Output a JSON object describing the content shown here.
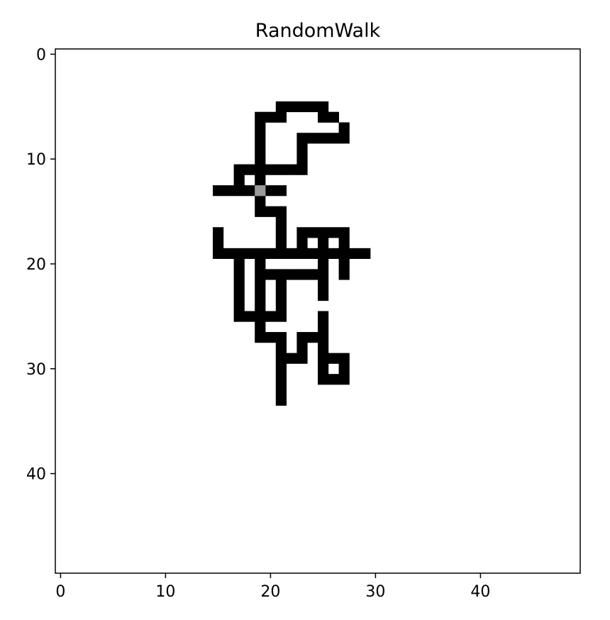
{
  "chart_data": {
    "type": "heatmap",
    "title": "RandomWalk",
    "grid_size": [
      50,
      50
    ],
    "xlim": [
      -0.5,
      49.5
    ],
    "ylim": [
      49.5,
      -0.5
    ],
    "xticks": [
      0,
      10,
      20,
      30,
      40
    ],
    "yticks": [
      0,
      10,
      20,
      30,
      40
    ],
    "xlabel": "",
    "ylabel": "",
    "grid": false,
    "colors": {
      "background": "#ffffff",
      "visited": "#000000",
      "current": "#9a9a9a"
    },
    "visited_cells": [
      [
        21,
        5
      ],
      [
        22,
        5
      ],
      [
        23,
        5
      ],
      [
        24,
        5
      ],
      [
        25,
        5
      ],
      [
        19,
        6
      ],
      [
        20,
        6
      ],
      [
        21,
        6
      ],
      [
        25,
        6
      ],
      [
        26,
        6
      ],
      [
        19,
        7
      ],
      [
        27,
        7
      ],
      [
        19,
        8
      ],
      [
        23,
        8
      ],
      [
        24,
        8
      ],
      [
        25,
        8
      ],
      [
        26,
        8
      ],
      [
        27,
        8
      ],
      [
        19,
        9
      ],
      [
        23,
        9
      ],
      [
        19,
        10
      ],
      [
        23,
        10
      ],
      [
        17,
        11
      ],
      [
        18,
        11
      ],
      [
        19,
        11
      ],
      [
        20,
        11
      ],
      [
        21,
        11
      ],
      [
        22,
        11
      ],
      [
        23,
        11
      ],
      [
        17,
        12
      ],
      [
        19,
        12
      ],
      [
        15,
        13
      ],
      [
        16,
        13
      ],
      [
        17,
        13
      ],
      [
        18,
        13
      ],
      [
        20,
        13
      ],
      [
        21,
        13
      ],
      [
        19,
        14
      ],
      [
        19,
        15
      ],
      [
        20,
        15
      ],
      [
        21,
        15
      ],
      [
        21,
        16
      ],
      [
        15,
        17
      ],
      [
        21,
        17
      ],
      [
        23,
        17
      ],
      [
        24,
        17
      ],
      [
        25,
        17
      ],
      [
        26,
        17
      ],
      [
        27,
        17
      ],
      [
        15,
        18
      ],
      [
        21,
        18
      ],
      [
        23,
        18
      ],
      [
        25,
        18
      ],
      [
        27,
        18
      ],
      [
        15,
        19
      ],
      [
        16,
        19
      ],
      [
        17,
        19
      ],
      [
        18,
        19
      ],
      [
        19,
        19
      ],
      [
        20,
        19
      ],
      [
        21,
        19
      ],
      [
        22,
        19
      ],
      [
        23,
        19
      ],
      [
        24,
        19
      ],
      [
        25,
        19
      ],
      [
        26,
        19
      ],
      [
        27,
        19
      ],
      [
        28,
        19
      ],
      [
        29,
        19
      ],
      [
        17,
        20
      ],
      [
        19,
        20
      ],
      [
        25,
        20
      ],
      [
        27,
        20
      ],
      [
        17,
        21
      ],
      [
        19,
        21
      ],
      [
        20,
        21
      ],
      [
        21,
        21
      ],
      [
        22,
        21
      ],
      [
        23,
        21
      ],
      [
        24,
        21
      ],
      [
        25,
        21
      ],
      [
        27,
        21
      ],
      [
        17,
        22
      ],
      [
        19,
        22
      ],
      [
        21,
        22
      ],
      [
        25,
        22
      ],
      [
        17,
        23
      ],
      [
        19,
        23
      ],
      [
        21,
        23
      ],
      [
        25,
        23
      ],
      [
        17,
        24
      ],
      [
        19,
        24
      ],
      [
        21,
        24
      ],
      [
        17,
        25
      ],
      [
        18,
        25
      ],
      [
        19,
        25
      ],
      [
        20,
        25
      ],
      [
        21,
        25
      ],
      [
        25,
        25
      ],
      [
        19,
        26
      ],
      [
        25,
        26
      ],
      [
        19,
        27
      ],
      [
        20,
        27
      ],
      [
        21,
        27
      ],
      [
        23,
        27
      ],
      [
        24,
        27
      ],
      [
        25,
        27
      ],
      [
        21,
        28
      ],
      [
        23,
        28
      ],
      [
        25,
        28
      ],
      [
        21,
        29
      ],
      [
        22,
        29
      ],
      [
        23,
        29
      ],
      [
        25,
        29
      ],
      [
        26,
        29
      ],
      [
        27,
        29
      ],
      [
        21,
        30
      ],
      [
        25,
        30
      ],
      [
        27,
        30
      ],
      [
        21,
        31
      ],
      [
        25,
        31
      ],
      [
        26,
        31
      ],
      [
        27,
        31
      ],
      [
        21,
        32
      ],
      [
        21,
        33
      ]
    ],
    "current_cell": [
      19,
      13
    ]
  }
}
